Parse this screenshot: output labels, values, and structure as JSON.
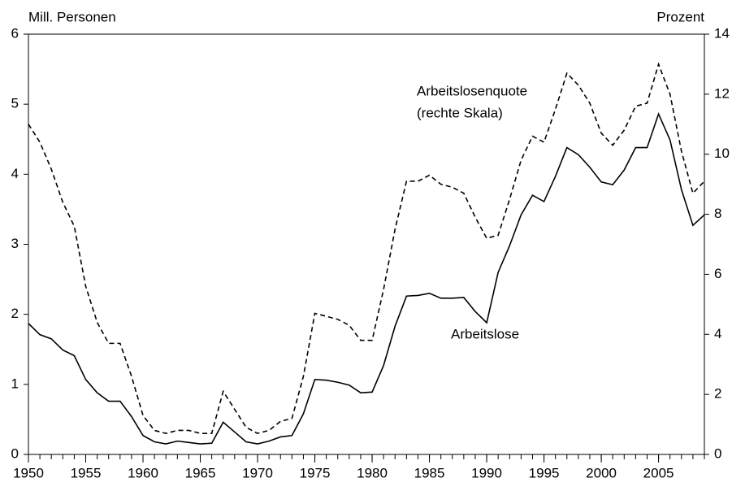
{
  "chart_data": {
    "type": "line",
    "y_label": "Mill. Personen",
    "y2_label": "Prozent",
    "annotations": [
      "(rechte Skala)"
    ],
    "x": [
      1950,
      1951,
      1952,
      1953,
      1954,
      1955,
      1956,
      1957,
      1958,
      1959,
      1960,
      1961,
      1962,
      1963,
      1964,
      1965,
      1966,
      1967,
      1968,
      1969,
      1970,
      1971,
      1972,
      1973,
      1974,
      1975,
      1976,
      1977,
      1978,
      1979,
      1980,
      1981,
      1982,
      1983,
      1984,
      1985,
      1986,
      1987,
      1988,
      1989,
      1990,
      1991,
      1992,
      1993,
      1994,
      1995,
      1996,
      1997,
      1998,
      1999,
      2000,
      2001,
      2002,
      2003,
      2004,
      2005,
      2006,
      2007,
      2008,
      2009
    ],
    "series": [
      {
        "name": "Arbeitslose",
        "color": "#000000",
        "dash": "solid",
        "values": [
          1.87,
          1.71,
          1.65,
          1.49,
          1.41,
          1.07,
          0.88,
          0.76,
          0.76,
          0.54,
          0.27,
          0.18,
          0.15,
          0.19,
          0.17,
          0.15,
          0.16,
          0.46,
          0.32,
          0.18,
          0.15,
          0.19,
          0.25,
          0.27,
          0.58,
          1.07,
          1.06,
          1.03,
          0.99,
          0.88,
          0.89,
          1.27,
          1.83,
          2.26,
          2.27,
          2.3,
          2.23,
          2.23,
          2.24,
          2.04,
          1.88,
          2.6,
          2.98,
          3.42,
          3.7,
          3.61,
          3.97,
          4.38,
          4.28,
          4.1,
          3.89,
          3.85,
          4.06,
          4.38,
          4.38,
          4.86,
          4.49,
          3.78,
          3.27,
          3.42
        ]
      },
      {
        "name": "Arbeitslosenquote",
        "color": "#000000",
        "dash": "dashed",
        "axis": "y2",
        "values": [
          11.0,
          10.4,
          9.5,
          8.4,
          7.6,
          5.6,
          4.4,
          3.7,
          3.7,
          2.6,
          1.3,
          0.8,
          0.7,
          0.8,
          0.8,
          0.7,
          0.7,
          2.1,
          1.5,
          0.9,
          0.7,
          0.8,
          1.1,
          1.2,
          2.6,
          4.7,
          4.6,
          4.5,
          4.3,
          3.8,
          3.8,
          5.5,
          7.5,
          9.1,
          9.1,
          9.3,
          9.0,
          8.9,
          8.7,
          7.9,
          7.2,
          7.3,
          8.5,
          9.8,
          10.6,
          10.4,
          11.5,
          12.7,
          12.3,
          11.7,
          10.7,
          10.3,
          10.8,
          11.6,
          11.7,
          13.0,
          12.0,
          10.1,
          8.7,
          9.1
        ]
      }
    ],
    "xlim": [
      1950,
      2009
    ],
    "xticks": [
      1950,
      1955,
      1960,
      1965,
      1970,
      1975,
      1980,
      1985,
      1990,
      1995,
      2000,
      2005
    ],
    "ylim": [
      0,
      6
    ],
    "yticks": [
      0,
      1,
      2,
      3,
      4,
      5,
      6
    ],
    "y2lim": [
      0,
      14
    ],
    "y2ticks": [
      0,
      2,
      4,
      6,
      8,
      10,
      12,
      14
    ],
    "grid": false
  }
}
